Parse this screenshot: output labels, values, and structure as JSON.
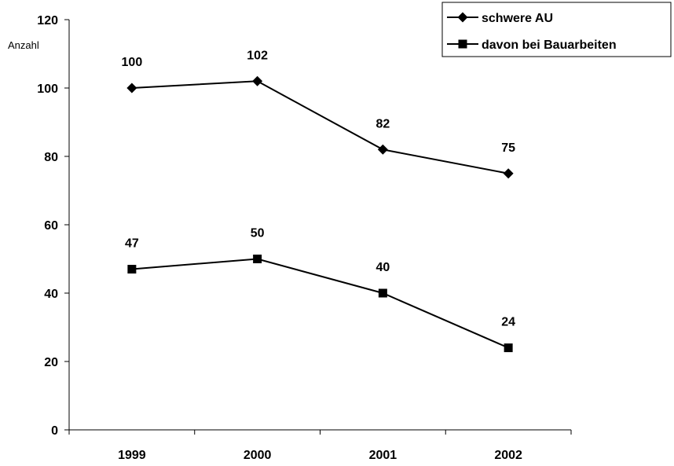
{
  "chart_data": {
    "type": "line",
    "title": "",
    "xlabel": "",
    "ylabel": "Anzahl",
    "categories": [
      "1999",
      "2000",
      "2001",
      "2002"
    ],
    "series": [
      {
        "name": "schwere AU",
        "marker": "diamond",
        "values": [
          100,
          102,
          82,
          75
        ]
      },
      {
        "name": "davon bei Bauarbeiten",
        "marker": "square",
        "values": [
          47,
          50,
          40,
          24
        ]
      }
    ],
    "ylim": [
      0,
      120
    ],
    "yticks": [
      0,
      20,
      40,
      60,
      80,
      100,
      120
    ],
    "grid": false,
    "legend": "top-right",
    "line_color": "#000000"
  }
}
